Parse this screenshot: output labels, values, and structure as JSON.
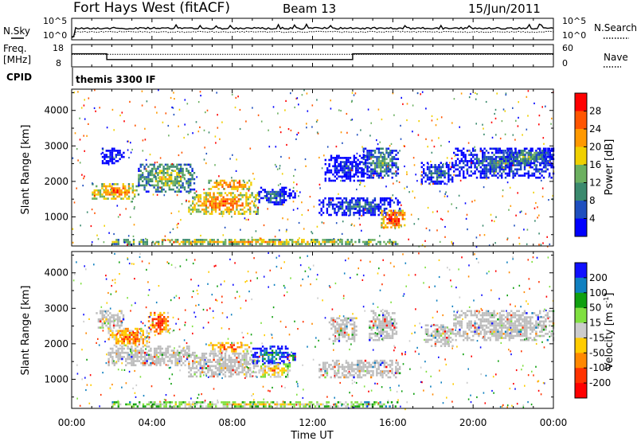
{
  "header": {
    "title": "Fort Hays West (fitACF)",
    "beam": "Beam 13",
    "date": "15/Jun/2011"
  },
  "labels": {
    "nsky": "N.Sky",
    "nsearch": "N.Search",
    "freq": "Freq.",
    "freq_unit": "[MHz]",
    "nave": "Nave",
    "cpid": "CPID",
    "cpid_value": "themis 3300 IF",
    "xlabel": "Time UT"
  },
  "colors": {
    "power": [
      "#0000ff",
      "#1f4fbf",
      "#3b8a6e",
      "#6cb060",
      "#f0d000",
      "#ff9900",
      "#ff5500",
      "#ff0000"
    ],
    "velocity": [
      "#1010ff",
      "#1080c0",
      "#10a010",
      "#80e040",
      "#cccccc",
      "#ffcc00",
      "#ff8800",
      "#ff3300",
      "#ff0000"
    ],
    "ground_scatter": "#bdbdbd"
  },
  "chart_data": [
    {
      "type": "line",
      "name": "noise",
      "x_range": [
        0,
        24
      ],
      "ylabel_left": "N.Sky",
      "ylabel_right": "N.Search",
      "left_ticks": [
        "10^5",
        "10^0"
      ],
      "right_ticks": [
        "10^5",
        "10^0"
      ],
      "series": [
        {
          "name": "N.Sky",
          "style": "solid",
          "level": "mid-high"
        },
        {
          "name": "N.Search",
          "style": "dotted",
          "level": "mid"
        }
      ]
    },
    {
      "type": "line",
      "name": "frequency",
      "x_range": [
        0,
        24
      ],
      "left_ticks": [
        18,
        8
      ],
      "right_ticks": [
        60,
        0
      ],
      "series": [
        {
          "name": "Freq.",
          "style": "solid",
          "x": [
            0,
            1.75,
            1.75,
            14,
            14,
            24
          ],
          "y": [
            14,
            14,
            11,
            11,
            14,
            14
          ]
        },
        {
          "name": "Nave",
          "style": "dotted",
          "x": [
            0,
            24
          ],
          "y": [
            15,
            15
          ]
        }
      ]
    },
    {
      "type": "heatmap",
      "name": "power",
      "ylabel": "Slant Range [km]",
      "y_ticks": [
        1000,
        2000,
        3000,
        4000
      ],
      "ylim": [
        180,
        4600
      ],
      "x_range": [
        0,
        24
      ],
      "colorbar_label": "Power [dB]",
      "colorbar_ticks": [
        4,
        8,
        12,
        16,
        20,
        24,
        28
      ],
      "regions": [
        {
          "x0": 1.0,
          "x1": 3.4,
          "y0": 1500,
          "y1": 1950,
          "level": 6
        },
        {
          "x0": 3.3,
          "x1": 6.2,
          "y0": 1700,
          "y1": 2500,
          "level": 4
        },
        {
          "x0": 1.5,
          "x1": 2.6,
          "y0": 2500,
          "y1": 2950,
          "level": 1
        },
        {
          "x0": 5.8,
          "x1": 9.3,
          "y0": 1050,
          "y1": 1700,
          "level": 6
        },
        {
          "x0": 6.8,
          "x1": 9.0,
          "y0": 1750,
          "y1": 2050,
          "level": 6
        },
        {
          "x0": 9.3,
          "x1": 10.9,
          "y0": 1350,
          "y1": 1850,
          "level": 2
        },
        {
          "x0": 10.8,
          "x1": 11.2,
          "y0": 1450,
          "y1": 1750,
          "level": 1
        },
        {
          "x0": 12.6,
          "x1": 14.8,
          "y0": 2000,
          "y1": 2750,
          "level": 1
        },
        {
          "x0": 12.3,
          "x1": 16.4,
          "y0": 1050,
          "y1": 1550,
          "level": 2
        },
        {
          "x0": 15.4,
          "x1": 16.6,
          "y0": 650,
          "y1": 1200,
          "level": 7
        },
        {
          "x0": 14.5,
          "x1": 16.3,
          "y0": 2100,
          "y1": 2950,
          "level": 3
        },
        {
          "x0": 17.4,
          "x1": 19.0,
          "y0": 1900,
          "y1": 2550,
          "level": 2
        },
        {
          "x0": 19.0,
          "x1": 24.0,
          "y0": 2050,
          "y1": 2950,
          "level": 2
        },
        {
          "x0": 21.5,
          "x1": 24.0,
          "y0": 2450,
          "y1": 2950,
          "level": 3
        },
        {
          "x0": 2.0,
          "x1": 16.3,
          "y0": 200,
          "y1": 380,
          "level": 5
        }
      ]
    },
    {
      "type": "heatmap",
      "name": "velocity",
      "ylabel": "Slant Range [km]",
      "y_ticks": [
        1000,
        2000,
        3000,
        4000
      ],
      "ylim": [
        180,
        4600
      ],
      "x_range": [
        0,
        24
      ],
      "x_ticks": [
        "00:00",
        "04:00",
        "08:00",
        "12:00",
        "16:00",
        "20:00",
        "00:00"
      ],
      "xlabel": "Time UT",
      "colorbar_label": "Velocity [m s^-1]",
      "colorbar_ticks": [
        200,
        100,
        50,
        15,
        -15,
        -50,
        -100,
        -200
      ],
      "regions": [
        {
          "x0": 1.2,
          "x1": 2.6,
          "y0": 2450,
          "y1": 2950,
          "level": "g"
        },
        {
          "x0": 1.8,
          "x1": 3.9,
          "y0": 1950,
          "y1": 2450,
          "level": 7
        },
        {
          "x0": 3.8,
          "x1": 4.8,
          "y0": 2250,
          "y1": 2900,
          "level": 8
        },
        {
          "x0": 1.8,
          "x1": 6.2,
          "y0": 1350,
          "y1": 1950,
          "level": "g"
        },
        {
          "x0": 5.8,
          "x1": 9.3,
          "y0": 1050,
          "y1": 1750,
          "level": "g"
        },
        {
          "x0": 6.8,
          "x1": 9.0,
          "y0": 1750,
          "y1": 2050,
          "level": 7
        },
        {
          "x0": 9.0,
          "x1": 10.9,
          "y0": 1450,
          "y1": 1950,
          "level": 2
        },
        {
          "x0": 9.3,
          "x1": 10.9,
          "y0": 1050,
          "y1": 1450,
          "level": 6
        },
        {
          "x0": 10.8,
          "x1": 11.2,
          "y0": 1500,
          "y1": 1750,
          "level": 3
        },
        {
          "x0": 12.3,
          "x1": 16.4,
          "y0": 1050,
          "y1": 1550,
          "level": "g"
        },
        {
          "x0": 12.8,
          "x1": 14.2,
          "y0": 2050,
          "y1": 2750,
          "level": "g"
        },
        {
          "x0": 14.8,
          "x1": 16.2,
          "y0": 2100,
          "y1": 2950,
          "level": "g"
        },
        {
          "x0": 17.6,
          "x1": 19.0,
          "y0": 1900,
          "y1": 2550,
          "level": "g"
        },
        {
          "x0": 19.0,
          "x1": 24.0,
          "y0": 2050,
          "y1": 2950,
          "level": "g"
        },
        {
          "x0": 2.0,
          "x1": 16.3,
          "y0": 200,
          "y1": 380,
          "level": 5
        }
      ]
    }
  ]
}
